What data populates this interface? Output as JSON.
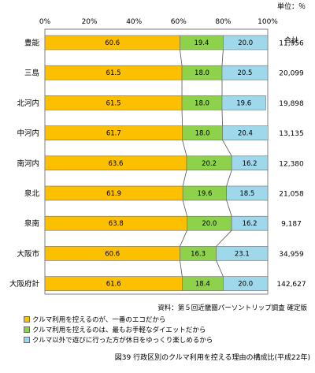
{
  "unit_label": "単位：％",
  "total_header": "合計",
  "source": "資料：第５回近畿圏パーソントリップ調査 確定版",
  "caption": "図39 行政区別のクルマ利用を控える理由の構成比(平成22年)",
  "colors": {
    "s1": "#fcc000",
    "s2": "#8ed24c",
    "s3": "#9ed8ea",
    "frame": "#808080",
    "connector": "#555555"
  },
  "chart_data": {
    "type": "bar",
    "orientation": "horizontal",
    "stacked": "percent",
    "xlim": [
      0,
      100
    ],
    "x_ticks": [
      "0%",
      "20%",
      "40%",
      "60%",
      "80%",
      "100%"
    ],
    "categories": [
      "豊能",
      "三島",
      "北河内",
      "中河内",
      "南河内",
      "泉北",
      "泉南",
      "大阪市",
      "大阪府計"
    ],
    "series": [
      {
        "name": "クルマ利用を控えるのが、一番のエコだから",
        "color": "#fcc000",
        "values": [
          60.6,
          61.5,
          61.5,
          61.7,
          63.6,
          61.9,
          63.8,
          60.6,
          61.6
        ]
      },
      {
        "name": "クルマ利用を控えるのは、最もお手軽なダイエットだから",
        "color": "#8ed24c",
        "values": [
          19.4,
          18.0,
          18.0,
          18.0,
          20.2,
          19.6,
          20.0,
          16.3,
          18.4
        ]
      },
      {
        "name": "クルマ以外で遊びに行った方が休日をゆっくり楽しめるから",
        "color": "#9ed8ea",
        "values": [
          20.0,
          20.5,
          19.6,
          20.4,
          16.2,
          18.5,
          16.2,
          23.1,
          20.0
        ]
      }
    ],
    "totals": [
      "11,956",
      "20,099",
      "19,898",
      "13,135",
      "12,380",
      "21,058",
      "9,187",
      "34,959",
      "142,627"
    ],
    "labels": [
      [
        "60.6",
        "19.4",
        "20.0"
      ],
      [
        "61.5",
        "18.0",
        "20.5"
      ],
      [
        "61.5",
        "18.0",
        "19.6"
      ],
      [
        "61.7",
        "18.0",
        "20.4"
      ],
      [
        "63.6",
        "20.2",
        "16.2"
      ],
      [
        "61.9",
        "19.6",
        "18.5"
      ],
      [
        "63.8",
        "20.0",
        "16.2"
      ],
      [
        "60.6",
        "16.3",
        "23.1"
      ],
      [
        "61.6",
        "18.4",
        "20.0"
      ]
    ],
    "grid": false,
    "legend_position": "bottom"
  }
}
